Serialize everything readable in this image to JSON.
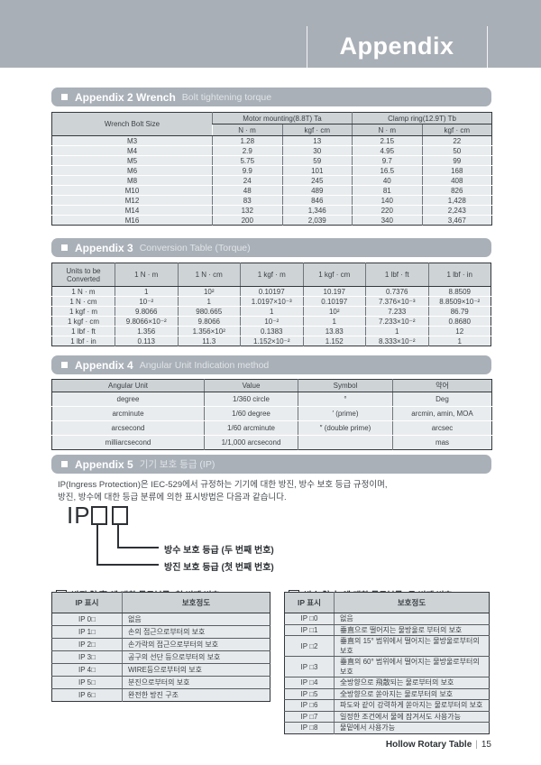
{
  "banner": {
    "title": "Appendix"
  },
  "appendix2": {
    "title": "Appendix 2 Wrench",
    "subtitle": "Bolt tightening torque",
    "table": {
      "col1_header": "Wrench Bolt Size",
      "group_headers": [
        "Motor mounting(8.8T) Ta",
        "Clamp ring(12.9T) Tb"
      ],
      "unit_headers": [
        "N · m",
        "kgf · cm",
        "N · m",
        "kgf · cm"
      ],
      "rows": [
        [
          "M3",
          "1.28",
          "13",
          "2.15",
          "22"
        ],
        [
          "M4",
          "2.9",
          "30",
          "4.95",
          "50"
        ],
        [
          "M5",
          "5.75",
          "59",
          "9.7",
          "99"
        ],
        [
          "M6",
          "9.9",
          "101",
          "16.5",
          "168"
        ],
        [
          "M8",
          "24",
          "245",
          "40",
          "408"
        ],
        [
          "M10",
          "48",
          "489",
          "81",
          "826"
        ],
        [
          "M12",
          "83",
          "846",
          "140",
          "1,428"
        ],
        [
          "M14",
          "132",
          "1,346",
          "220",
          "2,243"
        ],
        [
          "M16",
          "200",
          "2,039",
          "340",
          "3,467"
        ]
      ]
    }
  },
  "appendix3": {
    "title": "Appendix 3",
    "subtitle": "Conversion Table (Torque)",
    "table": {
      "headers": [
        "Units to be Converted",
        "1 N · m",
        "1 N · cm",
        "1 kgf · m",
        "1 kgf · cm",
        "1 lbf · ft",
        "1 lbf · in"
      ],
      "rows": [
        [
          "1 N · m",
          "1",
          "10²",
          "0.10197",
          "10.197",
          "0.7376",
          "8.8509"
        ],
        [
          "1 N · cm",
          "10⁻²",
          "1",
          "1.0197×10⁻³",
          "0.10197",
          "7.376×10⁻³",
          "8.8509×10⁻²"
        ],
        [
          "1 kgf · m",
          "9.8066",
          "980.665",
          "1",
          "10²",
          "7.233",
          "86.79"
        ],
        [
          "1 kgf · cm",
          "9.8066×10⁻²",
          "9.8066",
          "10⁻²",
          "1",
          "7.233×10⁻²",
          "0.8680"
        ],
        [
          "1 lbf · ft",
          "1.356",
          "1.356×10²",
          "0.1383",
          "13.83",
          "1",
          "12"
        ],
        [
          "1 lbf · in",
          "0.113",
          "11.3",
          "1.152×10⁻²",
          "1.152",
          "8.333×10⁻²",
          "1"
        ]
      ]
    }
  },
  "appendix4": {
    "title": "Appendix 4",
    "subtitle": "Angular Unit Indication method",
    "table": {
      "headers": [
        "Angular Unit",
        "Value",
        "Symbol",
        "약어"
      ],
      "rows": [
        [
          "degree",
          "1/360 circle",
          "°",
          "Deg"
        ],
        [
          "arcminute",
          "1/60 degree",
          "′ (prime)",
          "arcmin, amin, MOA"
        ],
        [
          "arcsecond",
          "1/60 arcminute",
          "″ (double prime)",
          "arcsec"
        ],
        [
          "milliarcsecond",
          "1/1,000 arcsecond",
          "",
          "mas"
        ]
      ]
    }
  },
  "appendix5": {
    "title": "Appendix 5",
    "subtitle": "기기 보호 등급 (IP)",
    "paragraph_line1": "IP(Ingress Protection)은 IEC-529에서 규정하는 기기에 대한 방진, 방수 보호 등급 규정이며,",
    "paragraph_line2": "방진, 방수에 대한 등급 분류에 의한 표시방법은 다음과 같습니다.",
    "ip_word": "IP",
    "waterproof_label": "방수 보호 등급 (두 번째 번호)",
    "dustproof_label": "방진 보호 등급 (첫 번째 번호)",
    "dust_table": {
      "number": "1",
      "title": "방진(防塵)에 대한 등급분류 (첫 번째 번호)",
      "headers": [
        "IP 표시",
        "보호정도"
      ],
      "rows": [
        [
          "IP 0□",
          "없음"
        ],
        [
          "IP 1□",
          "손의 접근으로부터의 보호"
        ],
        [
          "IP 2□",
          "손가락의 접근으로부터의 보호"
        ],
        [
          "IP 3□",
          "공구의 선단 등으로부터의 보호"
        ],
        [
          "IP 4□",
          "WIRE등으로부터의 보호"
        ],
        [
          "IP 5□",
          "분진으로부터의 보호"
        ],
        [
          "IP 6□",
          "완전한 방진 구조"
        ]
      ]
    },
    "water_table": {
      "number": "2",
      "title": "방수(防水)에 대한 등급분류 (두 번째 번호)",
      "headers": [
        "IP 표시",
        "보호정도"
      ],
      "rows": [
        [
          "IP □0",
          "없음"
        ],
        [
          "IP □1",
          "垂直으로 떨어지는 물방울로 부터의 보호"
        ],
        [
          "IP □2",
          "垂直의 15° 범위에서 떨어지는 물방울로부터의 보호"
        ],
        [
          "IP □3",
          "垂直의 60° 범위에서 떨어지는 물방울로부터의 보호"
        ],
        [
          "IP □4",
          "全방향으로 飛散되는 물로부터의 보호"
        ],
        [
          "IP □5",
          "全방향으로 쏟아지는 물로부터의 보호"
        ],
        [
          "IP □6",
          "파도와 같이 강력하게 쏟아지는 물로부터의 보호"
        ],
        [
          "IP □7",
          "일정한 조건에서 물에 잠겨서도 사용가능"
        ],
        [
          "IP □8",
          "물밑에서 사용가능"
        ]
      ]
    }
  },
  "footer": {
    "product": "Hollow Rotary Table",
    "separator": "|",
    "page": "15"
  }
}
